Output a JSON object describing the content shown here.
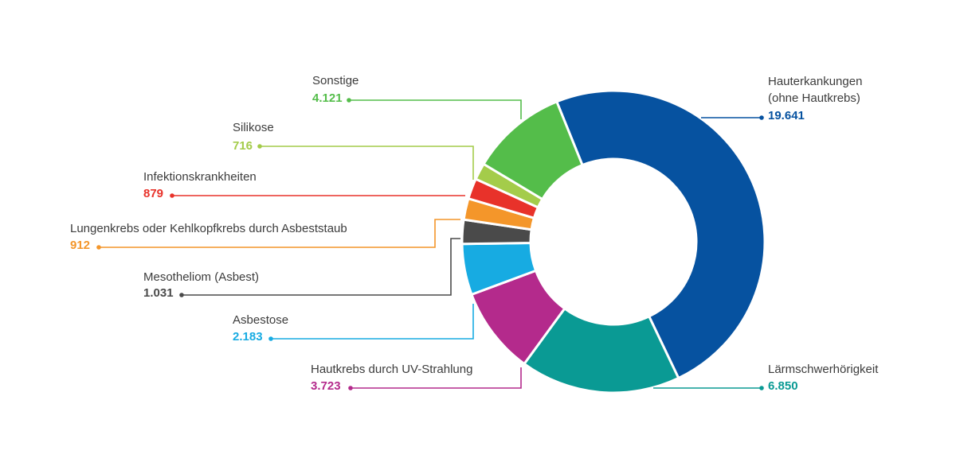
{
  "chart_data": {
    "type": "pie",
    "variant": "donut",
    "start_angle_deg": -22,
    "direction": "clockwise",
    "slices": [
      {
        "label": "Hauterkankungen (ohne Hautkrebs)",
        "label_lines": [
          "Hauterkankungen",
          "(ohne Hautkrebs)"
        ],
        "value": 19641,
        "value_text": "19.641",
        "color": "#0652a0"
      },
      {
        "label": "Lärmschwerhörigkeit",
        "label_lines": [
          "Lärmschwerhörigkeit"
        ],
        "value": 6850,
        "value_text": "6.850",
        "color": "#0a9a94"
      },
      {
        "label": "Hautkrebs durch UV-Strahlung",
        "label_lines": [
          "Hautkrebs durch UV-Strahlung"
        ],
        "value": 3723,
        "value_text": "3.723",
        "color": "#b42a8c"
      },
      {
        "label": "Asbestose",
        "label_lines": [
          "Asbestose"
        ],
        "value": 2183,
        "value_text": "2.183",
        "color": "#17abe2"
      },
      {
        "label": "Mesotheliom (Asbest)",
        "label_lines": [
          "Mesotheliom (Asbest)"
        ],
        "value": 1031,
        "value_text": "1.031",
        "color": "#4a4a4a"
      },
      {
        "label": "Lungenkrebs oder Kehlkopfkrebs durch Asbeststaub",
        "label_lines": [
          "Lungenkrebs oder Kehlkopfkrebs durch Asbeststaub"
        ],
        "value": 912,
        "value_text": "912",
        "color": "#f4962a"
      },
      {
        "label": "Infektionskrankheiten",
        "label_lines": [
          "Infektionskrankheiten"
        ],
        "value": 879,
        "value_text": "879",
        "color": "#e8322a"
      },
      {
        "label": "Silikose",
        "label_lines": [
          "Silikose"
        ],
        "value": 716,
        "value_text": "716",
        "color": "#a4cc4a"
      },
      {
        "label": "Sonstige",
        "label_lines": [
          "Sonstige"
        ],
        "value": 4121,
        "value_text": "4.121",
        "color": "#54bd4a"
      }
    ]
  }
}
